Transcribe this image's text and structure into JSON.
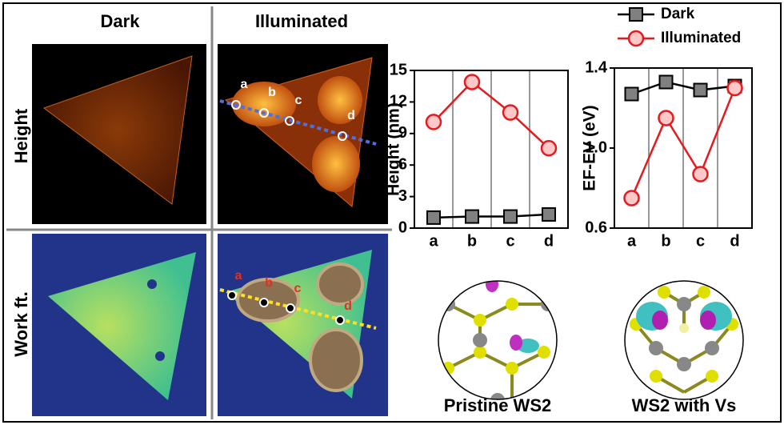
{
  "chart_data": [
    {
      "type": "line",
      "ylabel": "Height (nm)",
      "categories": [
        "a",
        "b",
        "c",
        "d"
      ],
      "series": [
        {
          "color": "#808080",
          "marker": "square",
          "values": [
            1.0,
            1.1,
            1.1,
            1.3
          ]
        },
        {
          "color": "#e8191c",
          "marker": "circle",
          "values": [
            10.1,
            13.9,
            11.0,
            7.6
          ]
        }
      ],
      "ylim": [
        0,
        15
      ],
      "yticks": [
        0,
        3,
        6,
        9,
        12,
        15
      ],
      "grid": true
    },
    {
      "type": "line",
      "ylabel": "EF-EV (eV)",
      "categories": [
        "a",
        "b",
        "c",
        "d"
      ],
      "series": [
        {
          "name": "Dark",
          "color": "#808080",
          "marker": "square",
          "values": [
            1.27,
            1.33,
            1.29,
            1.31
          ]
        },
        {
          "name": "Illuminated",
          "color": "#e8191c",
          "marker": "circle",
          "values": [
            0.75,
            1.15,
            0.87,
            1.3
          ]
        }
      ],
      "ylim": [
        0.6,
        1.4
      ],
      "yticks": [
        0.6,
        {
          "value": 1,
          "label": "1.0"
        },
        1.4
      ],
      "grid": true,
      "legend": "top"
    }
  ],
  "images": {
    "columns": [
      "Dark",
      "Illuminated"
    ],
    "rows": [
      "Height",
      "Work ft."
    ],
    "height_points": [
      "a",
      "b",
      "c",
      "d"
    ],
    "work_points": [
      "a",
      "b",
      "c",
      "d"
    ],
    "structures": [
      "Pristine WS2",
      "WS2 with Vs"
    ]
  }
}
